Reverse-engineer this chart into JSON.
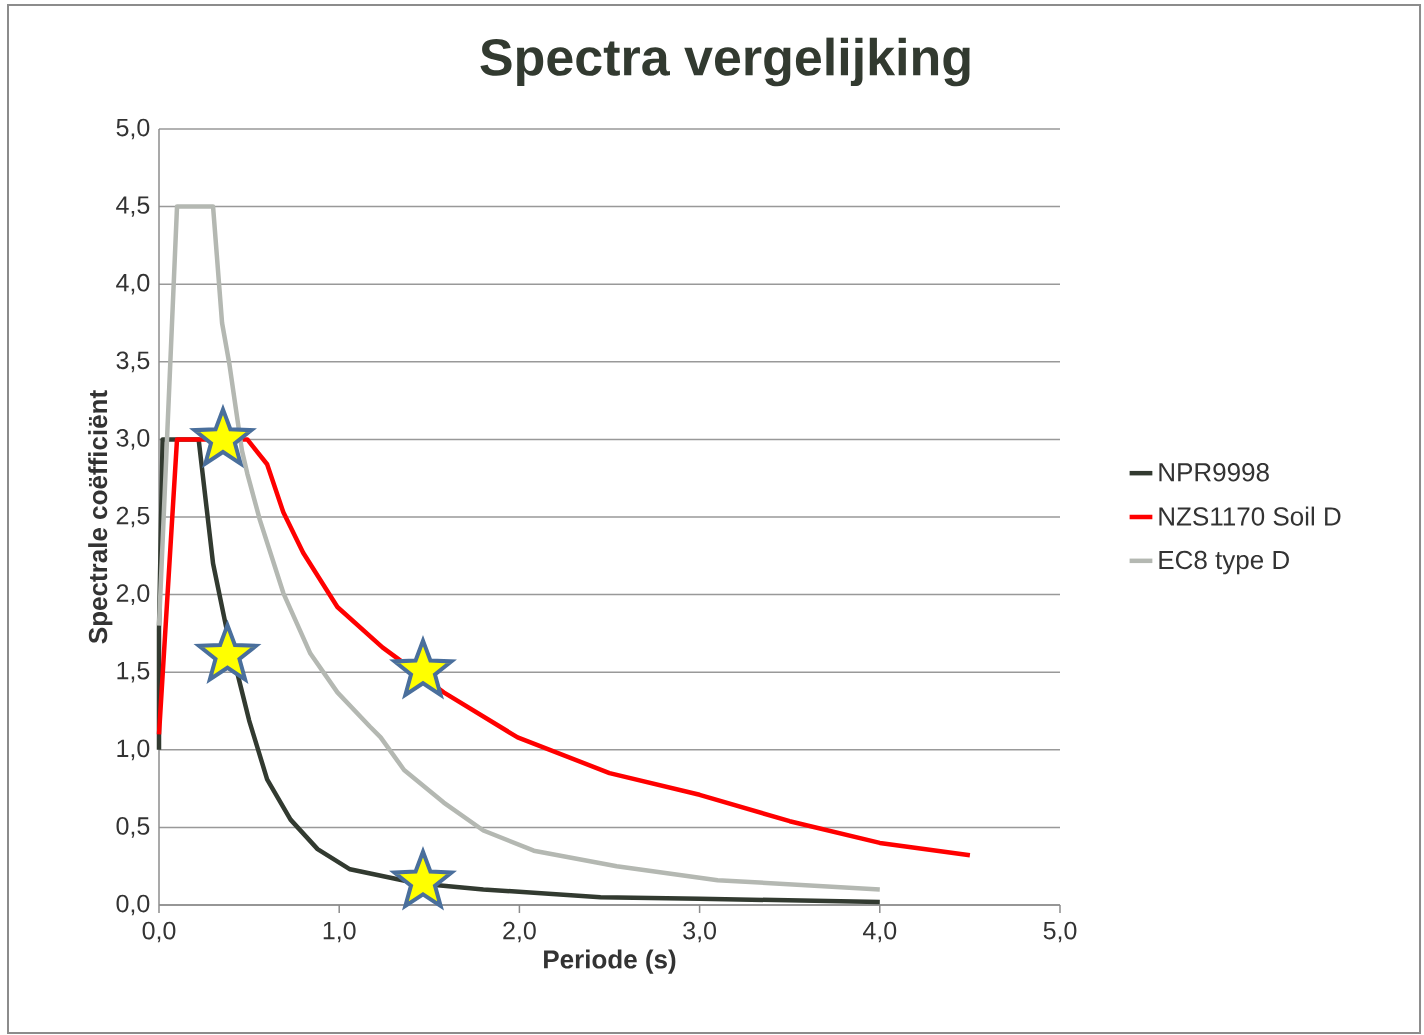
{
  "chart_data": {
    "type": "line",
    "title": "Spectra vergelijking",
    "xlabel": "Periode (s)",
    "ylabel": "Spectrale coëfficiënt",
    "xlim": [
      0,
      5
    ],
    "ylim": [
      0,
      5
    ],
    "xticks": [
      {
        "value": 0,
        "label": "0,0"
      },
      {
        "value": 1,
        "label": "1,0"
      },
      {
        "value": 2,
        "label": "2,0"
      },
      {
        "value": 3,
        "label": "3,0"
      },
      {
        "value": 4,
        "label": "4,0"
      },
      {
        "value": 5,
        "label": "5,0"
      }
    ],
    "yticks": [
      {
        "value": 0,
        "label": "0,0"
      },
      {
        "value": 0.5,
        "label": "0,5"
      },
      {
        "value": 1,
        "label": "1,0"
      },
      {
        "value": 1.5,
        "label": "1,5"
      },
      {
        "value": 2,
        "label": "2,0"
      },
      {
        "value": 2.5,
        "label": "2,5"
      },
      {
        "value": 3,
        "label": "3,0"
      },
      {
        "value": 3.5,
        "label": "3,5"
      },
      {
        "value": 4,
        "label": "4,0"
      },
      {
        "value": 4.5,
        "label": "4,5"
      },
      {
        "value": 5,
        "label": "5,0"
      }
    ],
    "grid": "y",
    "legend": "right",
    "marker": "none",
    "line_style": "solid",
    "series": [
      {
        "name": "NPR9998",
        "color": "#323a30",
        "x": [
          0,
          0,
          0.02,
          0.22,
          0.3,
          0.38,
          0.44,
          0.5,
          0.6,
          0.73,
          0.88,
          1.06,
          1.43,
          1.8,
          2.45,
          3.0,
          4.0
        ],
        "values": [
          1.0,
          1.78,
          3.0,
          3.0,
          2.2,
          1.75,
          1.47,
          1.19,
          0.81,
          0.55,
          0.36,
          0.23,
          0.14,
          0.1,
          0.05,
          0.04,
          0.02
        ]
      },
      {
        "name": "NZS1170 Soil D",
        "color": "#ff0000",
        "x": [
          0,
          0.1,
          0.49,
          0.6,
          0.69,
          0.8,
          0.99,
          1.24,
          1.58,
          1.99,
          2.5,
          3.0,
          3.5,
          4.0,
          4.5
        ],
        "values": [
          1.1,
          3.0,
          3.0,
          2.84,
          2.53,
          2.27,
          1.92,
          1.66,
          1.37,
          1.08,
          0.85,
          0.71,
          0.54,
          0.4,
          0.32
        ]
      },
      {
        "name": "EC8 type D",
        "color": "#b4b8b2",
        "x": [
          0,
          0.1,
          0.3,
          0.35,
          0.39,
          0.46,
          0.49,
          0.56,
          0.69,
          0.84,
          0.99,
          1.17,
          1.23,
          1.36,
          1.58,
          1.8,
          2.08,
          2.54,
          3.1,
          4.0
        ],
        "values": [
          1.8,
          4.5,
          4.5,
          3.75,
          3.49,
          2.93,
          2.78,
          2.48,
          2.01,
          1.62,
          1.37,
          1.15,
          1.08,
          0.87,
          0.66,
          0.48,
          0.35,
          0.25,
          0.16,
          0.1
        ]
      },
      {
        "type": "scatter",
        "marker": "star",
        "color": "#ffff00",
        "x": [
          0.355,
          0.38,
          1.465,
          1.465
        ],
        "values": [
          3.0,
          1.61,
          1.51,
          0.15
        ]
      }
    ]
  }
}
